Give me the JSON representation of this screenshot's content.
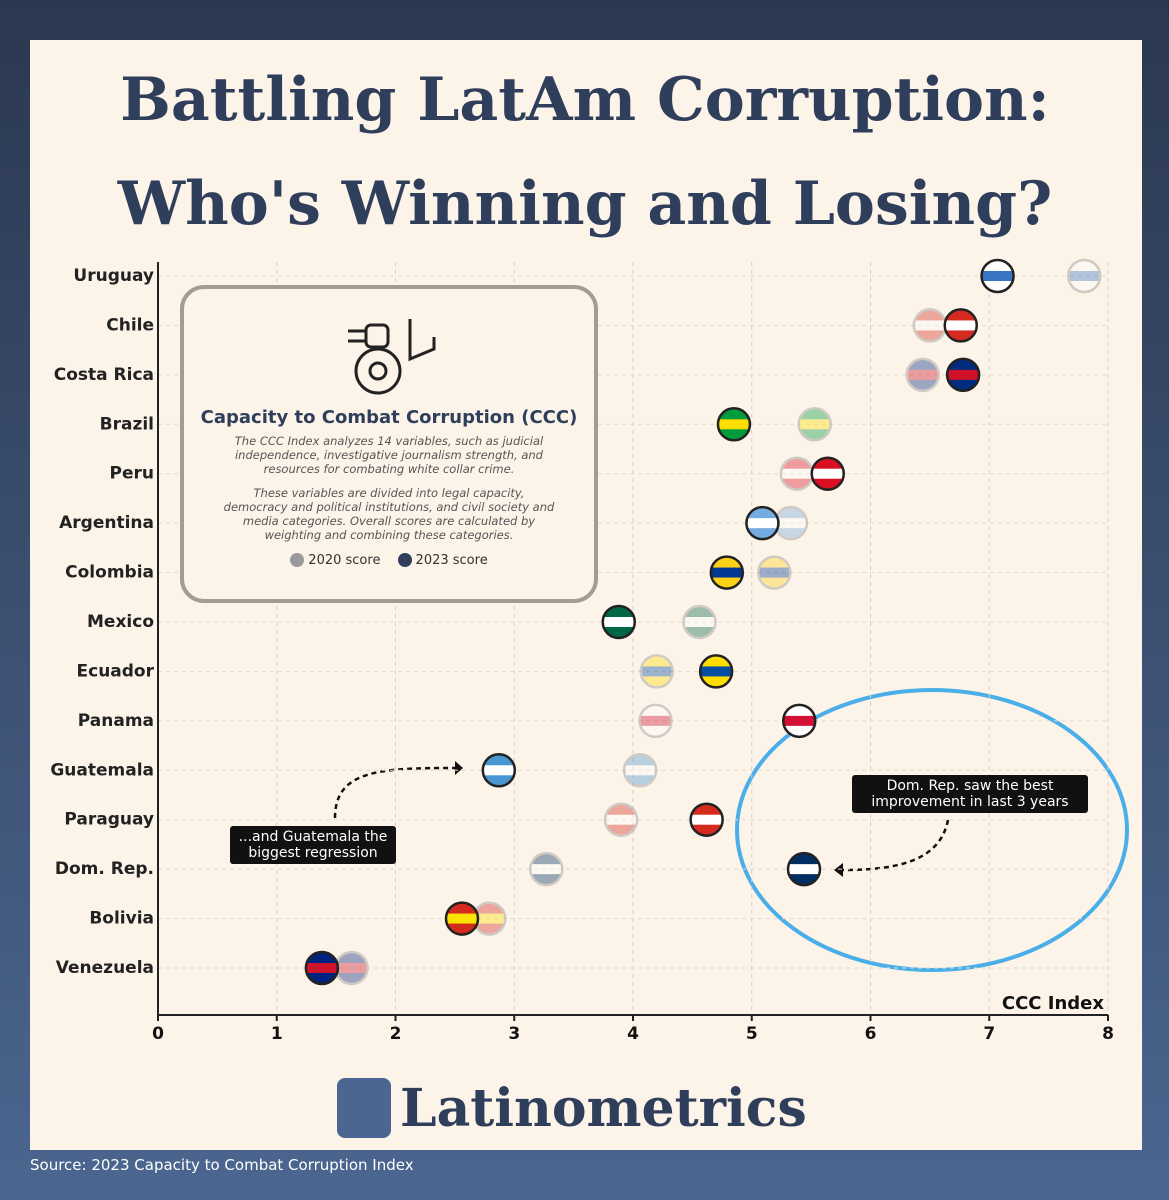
{
  "chart_data": {
    "type": "dot",
    "title": "Battling LatAm Corruption: Who's Winning and Losing?",
    "categories": [
      "Uruguay",
      "Chile",
      "Costa Rica",
      "Brazil",
      "Peru",
      "Argentina",
      "Colombia",
      "Mexico",
      "Ecuador",
      "Panama",
      "Guatemala",
      "Paraguay",
      "Dom. Rep.",
      "Bolivia",
      "Venezuela"
    ],
    "category_colors": [
      [
        "#ffffff",
        "#3a75c4"
      ],
      [
        "#d52b1e",
        "#ffffff"
      ],
      [
        "#002b7f",
        "#ce1126"
      ],
      [
        "#009c3b",
        "#ffdf00"
      ],
      [
        "#d91023",
        "#ffffff"
      ],
      [
        "#74acdf",
        "#ffffff"
      ],
      [
        "#fcd116",
        "#003893"
      ],
      [
        "#006847",
        "#ffffff"
      ],
      [
        "#ffdd00",
        "#034ea2"
      ],
      [
        "#ffffff",
        "#d21034"
      ],
      [
        "#4997d0",
        "#ffffff"
      ],
      [
        "#d52b1e",
        "#ffffff"
      ],
      [
        "#002d62",
        "#ffffff"
      ],
      [
        "#d52b1e",
        "#f9e300"
      ],
      [
        "#00247d",
        "#cf142b"
      ]
    ],
    "series": [
      {
        "name": "2020 score",
        "color": "#9a9a9a",
        "values": [
          7.8,
          6.5,
          6.44,
          5.53,
          5.38,
          5.33,
          5.19,
          4.56,
          4.2,
          4.19,
          4.06,
          3.9,
          3.27,
          2.79,
          1.63
        ]
      },
      {
        "name": "2023 score",
        "color": "#2f3e5a",
        "values": [
          7.07,
          6.76,
          6.78,
          4.85,
          5.64,
          5.09,
          4.79,
          3.88,
          4.7,
          5.4,
          2.87,
          4.62,
          5.44,
          2.56,
          1.38
        ]
      }
    ],
    "xlabel": "CCC Index",
    "xlim": [
      0,
      8
    ],
    "xticks": [
      0,
      1,
      2,
      3,
      4,
      5,
      6,
      7,
      8
    ],
    "grid": true,
    "info_box": {
      "title": "Capacity to Combat Corruption (CCC)",
      "paragraphs": [
        "The CCC Index analyzes 14 variables, such as judicial independence, investigative journalism strength, and resources for combating white collar crime.",
        "These variables are divided into legal capacity, democracy and political institutions, and civil society and media categories. Overall scores are calculated by weighting and combining these categories."
      ]
    },
    "annotations": [
      "Dom. Rep. saw the best improvement in last 3 years",
      "...and Guatemala the biggest regression"
    ],
    "brand": "Latinometrics",
    "source": "Source: 2023 Capacity to Combat Corruption Index"
  }
}
